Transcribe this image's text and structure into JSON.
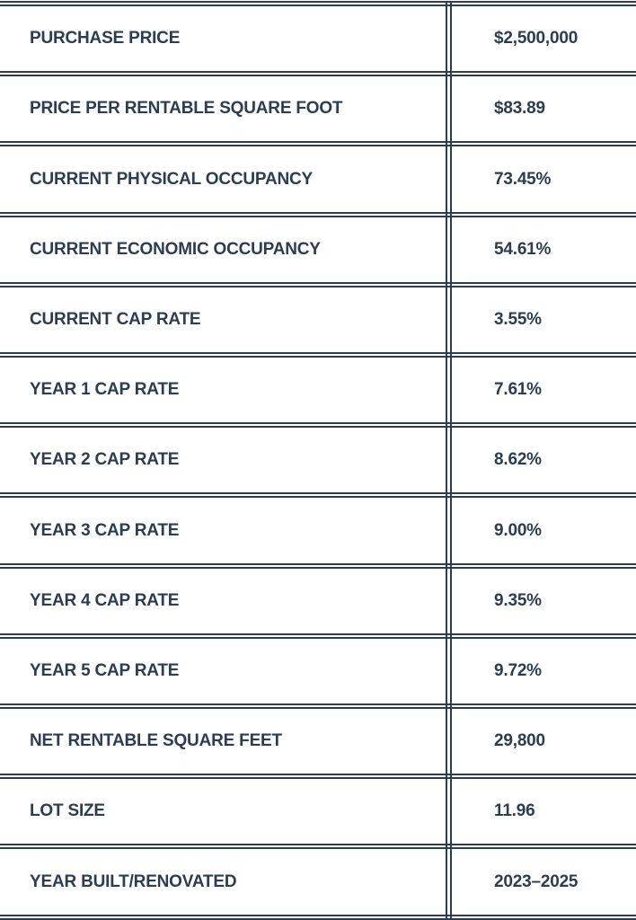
{
  "table": {
    "rows": [
      [
        "PURCHASE PRICE",
        "$2,500,000"
      ],
      [
        "PRICE PER RENTABLE SQUARE FOOT",
        "$83.89"
      ],
      [
        "CURRENT PHYSICAL OCCUPANCY",
        "73.45%"
      ],
      [
        "CURRENT ECONOMIC OCCUPANCY",
        "54.61%"
      ],
      [
        "CURRENT CAP RATE",
        "3.55%"
      ],
      [
        "YEAR 1 CAP RATE",
        "7.61%"
      ],
      [
        "YEAR 2 CAP RATE",
        "8.62%"
      ],
      [
        "YEAR 3 CAP RATE",
        "9.00%"
      ],
      [
        "YEAR 4 CAP RATE",
        "9.35%"
      ],
      [
        "YEAR 5 CAP RATE",
        "9.72%"
      ],
      [
        "NET RENTABLE SQUARE FEET",
        "29,800"
      ],
      [
        "LOT SIZE",
        "11.96"
      ],
      [
        "YEAR BUILT/RENOVATED",
        "2023–2025"
      ]
    ]
  }
}
